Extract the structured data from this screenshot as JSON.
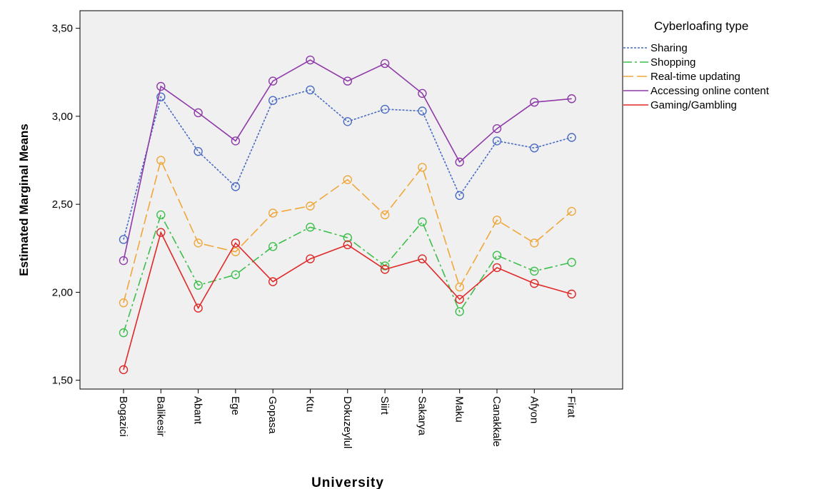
{
  "chart_data": {
    "type": "line",
    "xlabel": "University",
    "ylabel": "Estimated Marginal Means",
    "ylim": [
      1.45,
      3.6
    ],
    "yticks": [
      1.5,
      2.0,
      2.5,
      3.0,
      3.5
    ],
    "ytick_labels": [
      "1,50",
      "2,00",
      "2,50",
      "3,00",
      "3,50"
    ],
    "categories": [
      "Bogazici",
      "Balikesir",
      "Abant",
      "Ege",
      "Gopasa",
      "Ktu",
      "Dokuzeylul",
      "Siirt",
      "Sakarya",
      "Maku",
      "Canakkale",
      "Afyon",
      "Firat"
    ],
    "grid": false,
    "legend_position": "top-right",
    "legend_title": "Cyberloafing type",
    "series": [
      {
        "name": "Sharing",
        "color": "#4a6cc4",
        "dash": "dotted",
        "values": [
          2.3,
          3.11,
          2.8,
          2.6,
          3.09,
          3.15,
          2.97,
          3.04,
          3.03,
          2.55,
          2.86,
          2.82,
          2.88
        ]
      },
      {
        "name": "Shopping",
        "color": "#3cbf4c",
        "dash": "dashdot",
        "values": [
          1.77,
          2.44,
          2.04,
          2.1,
          2.26,
          2.37,
          2.31,
          2.15,
          2.4,
          1.89,
          2.21,
          2.12,
          2.17
        ]
      },
      {
        "name": "Real-time updating",
        "color": "#f0a73a",
        "dash": "longdash",
        "values": [
          1.94,
          2.75,
          2.28,
          2.23,
          2.45,
          2.49,
          2.64,
          2.44,
          2.71,
          2.03,
          2.41,
          2.28,
          2.46
        ]
      },
      {
        "name": "Accessing online content",
        "color": "#8e3aa8",
        "dash": "solid",
        "values": [
          2.18,
          3.17,
          3.02,
          2.86,
          3.2,
          3.32,
          3.2,
          3.3,
          3.13,
          2.74,
          2.93,
          3.08,
          3.1
        ]
      },
      {
        "name": "Gaming/Gambling",
        "color": "#e02828",
        "dash": "solid",
        "values": [
          1.56,
          2.34,
          1.91,
          2.28,
          2.06,
          2.19,
          2.27,
          2.13,
          2.19,
          1.96,
          2.14,
          2.05,
          1.99
        ]
      }
    ]
  }
}
